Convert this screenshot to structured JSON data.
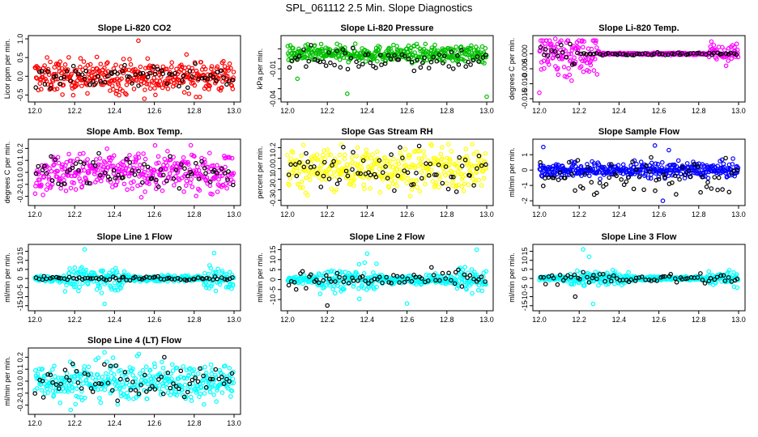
{
  "figure_title": "SPL_061112  2.5 Min. Slope Diagnostics",
  "chart_data": [
    {
      "type": "scatter",
      "title": "Slope Li-820 CO2",
      "ylabel": "Licor ppm per min.",
      "xlim": [
        12.0,
        13.0
      ],
      "ylim": [
        -0.6,
        1.0
      ],
      "xticks": [
        "12.0",
        "12.2",
        "12.4",
        "12.6",
        "12.8",
        "13.0"
      ],
      "yticks": [
        -0.5,
        0.0,
        0.5,
        1.0
      ],
      "ytick_labels": [
        "-0.5",
        "0.0",
        "0.5",
        "1.0"
      ],
      "series": [
        {
          "color": "#ff0000",
          "spread": 0.22,
          "center": 0.0,
          "outliers": [
            [
              12.52,
              0.95
            ],
            [
              12.55,
              -0.6
            ]
          ]
        },
        {
          "color": "#000000",
          "spread": 0.15,
          "center": 0.0,
          "outliers": []
        }
      ]
    },
    {
      "type": "scatter",
      "title": "Slope Li-820 Pressure",
      "ylabel": "kPa per min.",
      "xlim": [
        12.0,
        13.0
      ],
      "ylim": [
        -0.04,
        0.02
      ],
      "xticks": [
        "12.0",
        "12.2",
        "12.4",
        "12.6",
        "12.8",
        "13.0"
      ],
      "yticks": [
        -0.04,
        -0.03,
        -0.02,
        -0.01,
        0.0,
        0.01
      ],
      "ytick_labels": [
        "-0.04",
        "",
        "",
        "-0.01",
        "",
        ""
      ],
      "series": [
        {
          "color": "#00c000",
          "spread": 0.004,
          "center": 0.005,
          "outliers": [
            [
              12.3,
              -0.035
            ],
            [
              13.0,
              -0.038
            ],
            [
              12.05,
              -0.02
            ]
          ]
        },
        {
          "color": "#000000",
          "spread": 0.006,
          "center": 0.0,
          "outliers": []
        }
      ]
    },
    {
      "type": "scatter",
      "title": "Slope Li-820 Temp.",
      "ylabel": "degrees C per min.",
      "xlim": [
        12.0,
        13.0
      ],
      "ylim": [
        -0.015,
        0.005
      ],
      "xticks": [
        "12.0",
        "12.2",
        "12.4",
        "12.6",
        "12.8",
        "13.0"
      ],
      "yticks": [
        -0.015,
        -0.01,
        -0.005,
        0.0
      ],
      "ytick_labels": [
        "-0.015",
        "-0.010",
        "-0.005",
        "0.000"
      ],
      "series": [
        {
          "color": "#ff00ff",
          "spread": 0.002,
          "center": 0.0,
          "outliers": [
            [
              12.08,
              0.005
            ],
            [
              12.0,
              -0.013
            ]
          ]
        },
        {
          "color": "#000000",
          "spread": 0.0005,
          "center": 0.0,
          "outliers": []
        }
      ]
    },
    {
      "type": "scatter",
      "title": "Slope Amb. Box Temp.",
      "ylabel": "degrees C per min.",
      "xlim": [
        12.0,
        13.0
      ],
      "ylim": [
        -0.25,
        0.25
      ],
      "xticks": [
        "12.0",
        "12.2",
        "12.4",
        "12.6",
        "12.8",
        "13.0"
      ],
      "yticks": [
        -0.2,
        -0.1,
        0.0,
        0.1,
        0.2
      ],
      "ytick_labels": [
        "-0.2",
        "-0.1",
        "0.0",
        "0.1",
        "0.2"
      ],
      "series": [
        {
          "color": "#ff00ff",
          "spread": 0.08,
          "center": 0.0,
          "outliers": []
        },
        {
          "color": "#000000",
          "spread": 0.08,
          "center": 0.0,
          "outliers": []
        }
      ]
    },
    {
      "type": "scatter",
      "title": "Slope Gas Stream RH",
      "ylabel": "percent per min.",
      "xlim": [
        12.0,
        13.0
      ],
      "ylim": [
        -0.32,
        0.25
      ],
      "xticks": [
        "12.0",
        "12.2",
        "12.4",
        "12.6",
        "12.8",
        "13.0"
      ],
      "yticks": [
        -0.3,
        -0.2,
        -0.1,
        0.0,
        0.1,
        0.2
      ],
      "ytick_labels": [
        "-0.3",
        "-0.2",
        "-0.1",
        "0.0",
        "0.1",
        "0.2"
      ],
      "series": [
        {
          "color": "#ffff00",
          "spread": 0.1,
          "center": 0.0,
          "outliers": []
        },
        {
          "color": "#000000",
          "spread": 0.1,
          "center": 0.0,
          "outliers": []
        }
      ]
    },
    {
      "type": "scatter",
      "title": "Slope Sample Flow",
      "ylabel": "ml/min per min.",
      "xlim": [
        12.0,
        13.0
      ],
      "ylim": [
        -2.1,
        1.8
      ],
      "xticks": [
        "12.0",
        "12.2",
        "12.4",
        "12.6",
        "12.8",
        "13.0"
      ],
      "yticks": [
        -2,
        -1,
        0,
        1
      ],
      "ytick_labels": [
        "-2",
        "-1",
        "0",
        "1"
      ],
      "series": [
        {
          "color": "#0000ff",
          "spread": 0.25,
          "center": 0.0,
          "outliers": [
            [
              12.02,
              1.5
            ],
            [
              12.58,
              1.6
            ],
            [
              12.62,
              -2.0
            ],
            [
              12.65,
              1.3
            ]
          ]
        },
        {
          "color": "#000000",
          "spread": 0.6,
          "center": -0.5,
          "outliers": []
        }
      ]
    },
    {
      "type": "scatter",
      "title": "Slope Line 1 Flow",
      "ylabel": "ml/min per min.",
      "xlim": [
        12.0,
        13.0
      ],
      "ylim": [
        -16,
        17
      ],
      "xticks": [
        "12.0",
        "12.2",
        "12.4",
        "12.6",
        "12.8",
        "13.0"
      ],
      "yticks": [
        -15,
        -10,
        -5,
        0,
        5,
        10,
        15
      ],
      "ytick_labels": [
        "-15",
        "-10",
        "-5",
        "0",
        "5",
        "10",
        "15"
      ],
      "series": [
        {
          "color": "#00ffff",
          "spread": 3.0,
          "center": 0.0,
          "outliers": [
            [
              12.25,
              16
            ],
            [
              12.35,
              -14
            ],
            [
              12.9,
              14
            ]
          ]
        },
        {
          "color": "#000000",
          "spread": 0.5,
          "center": 0.0,
          "outliers": []
        }
      ]
    },
    {
      "type": "scatter",
      "title": "Slope Line 2 Flow",
      "ylabel": "ml/min per min.",
      "xlim": [
        12.0,
        13.0
      ],
      "ylim": [
        -14,
        16
      ],
      "xticks": [
        "12.0",
        "12.2",
        "12.4",
        "12.6",
        "12.8",
        "13.0"
      ],
      "yticks": [
        -10,
        -5,
        0,
        5,
        10,
        15
      ],
      "ytick_labels": [
        "-10",
        "-5",
        "0",
        "5",
        "10",
        "15"
      ],
      "series": [
        {
          "color": "#00ffff",
          "spread": 3.5,
          "center": 0.0,
          "outliers": [
            [
              12.6,
              -12
            ],
            [
              12.95,
              15
            ],
            [
              12.4,
              13
            ]
          ]
        },
        {
          "color": "#000000",
          "spread": 2.0,
          "center": 0.0,
          "outliers": [
            [
              12.2,
              -13
            ]
          ]
        }
      ]
    },
    {
      "type": "scatter",
      "title": "Slope Line 3 Flow",
      "ylabel": "ml/min per min.",
      "xlim": [
        12.0,
        13.0
      ],
      "ylim": [
        -16,
        17
      ],
      "xticks": [
        "12.0",
        "12.2",
        "12.4",
        "12.6",
        "12.8",
        "13.0"
      ],
      "yticks": [
        -15,
        -10,
        -5,
        0,
        5,
        10,
        15
      ],
      "ytick_labels": [
        "-15",
        "-10",
        "-5",
        "0",
        "5",
        "10",
        "15"
      ],
      "series": [
        {
          "color": "#00ffff",
          "spread": 2.0,
          "center": 0.0,
          "outliers": [
            [
              12.22,
              16
            ],
            [
              12.27,
              -14
            ],
            [
              12.25,
              12
            ]
          ]
        },
        {
          "color": "#000000",
          "spread": 1.5,
          "center": 0.0,
          "outliers": [
            [
              12.18,
              -10
            ]
          ]
        }
      ]
    },
    {
      "type": "scatter",
      "title": "Slope Line 4 (LT) Flow",
      "ylabel": "ml/min per min.",
      "xlim": [
        12.0,
        13.0
      ],
      "ylim": [
        -0.25,
        0.25
      ],
      "xticks": [
        "12.0",
        "12.2",
        "12.4",
        "12.6",
        "12.8",
        "13.0"
      ],
      "yticks": [
        -0.2,
        -0.1,
        0.0,
        0.1,
        0.2
      ],
      "ytick_labels": [
        "-0.2",
        "-0.1",
        "0.0",
        "0.1",
        "0.2"
      ],
      "series": [
        {
          "color": "#00ffff",
          "spread": 0.08,
          "center": 0.0,
          "outliers": [
            [
              12.35,
              0.24
            ],
            [
              12.18,
              -0.24
            ]
          ]
        },
        {
          "color": "#000000",
          "spread": 0.07,
          "center": 0.0,
          "outliers": [
            [
              12.65,
              0.2
            ]
          ]
        }
      ]
    }
  ]
}
